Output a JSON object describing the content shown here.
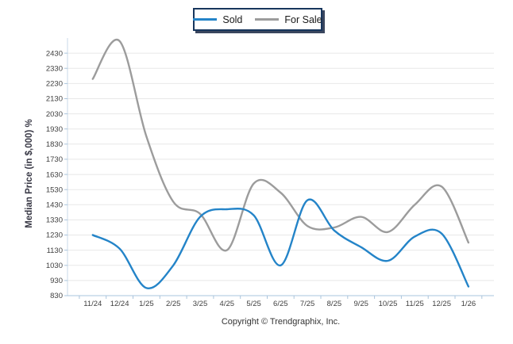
{
  "legend": {
    "items": [
      {
        "label": "Sold",
        "color": "#2484c8"
      },
      {
        "label": "For Sale",
        "color": "#9c9c9c"
      }
    ]
  },
  "footer": {
    "copyright": "Copyright © Trendgraphix, Inc."
  },
  "colors": {
    "legend_border": "#17365d",
    "grid": "#e8e8e8",
    "axis": "#aac4dc",
    "tick_text": "#404040",
    "title_text": "#373744",
    "sold_line": "#2484c8",
    "for_sale_line": "#9c9c9c"
  },
  "chart_data": {
    "type": "line",
    "title": "",
    "xlabel": "",
    "ylabel": "Median Price (in $,000) %",
    "categories": [
      "11/24",
      "12/24",
      "1/25",
      "2/25",
      "3/25",
      "4/25",
      "5/25",
      "6/25",
      "7/25",
      "8/25",
      "9/25",
      "10/25",
      "11/25",
      "12/25",
      "1/26"
    ],
    "series": [
      {
        "name": "Sold",
        "color": "#2484c8",
        "values": [
          1230,
          1140,
          880,
          1030,
          1350,
          1400,
          1360,
          1030,
          1460,
          1260,
          1150,
          1060,
          1220,
          1240,
          890
        ]
      },
      {
        "name": "For Sale",
        "color": "#9c9c9c",
        "values": [
          2260,
          2510,
          1880,
          1450,
          1370,
          1130,
          1570,
          1510,
          1290,
          1280,
          1350,
          1250,
          1430,
          1550,
          1180
        ]
      }
    ],
    "ylim": [
      830,
      2530
    ],
    "yticks": {
      "min": 830,
      "max": 2430,
      "step": 100
    },
    "grid": true,
    "smooth": true,
    "legend_position": "top-center"
  }
}
